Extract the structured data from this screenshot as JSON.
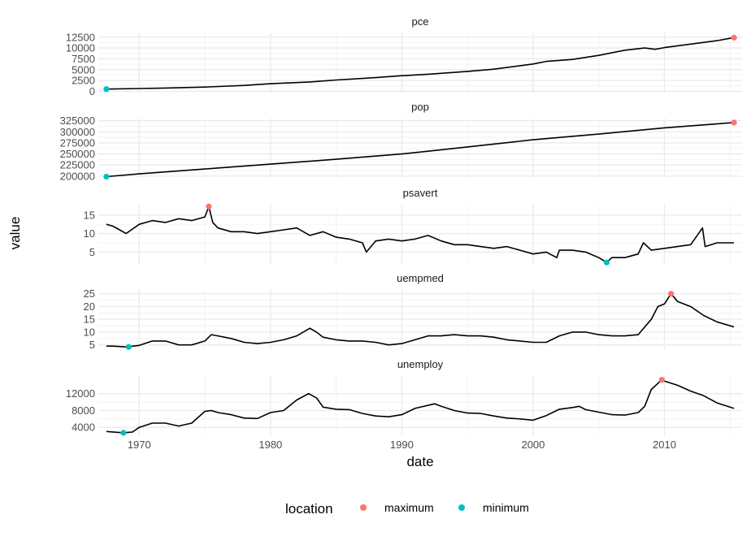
{
  "chart_data": {
    "type": "line",
    "xlabel": "date",
    "ylabel": "value",
    "x_ticks": [
      "1970",
      "1980",
      "1990",
      "2000",
      "2010"
    ],
    "x_tick_values": [
      1970,
      1980,
      1990,
      2000,
      2010
    ],
    "x_range": [
      1967.5,
      2015.3
    ],
    "legend": {
      "title": "location",
      "position": "bottom",
      "entries": [
        {
          "label": "maximum",
          "color": "#F8766D"
        },
        {
          "label": "minimum",
          "color": "#00BFC4"
        }
      ]
    },
    "line_color": "#000000",
    "grid": true,
    "panels": [
      {
        "name": "pce",
        "ylim": [
          -300,
          13400
        ],
        "y_ticks": [
          0,
          2500,
          5000,
          7500,
          10000,
          12500
        ],
        "y_tick_labels": [
          "0",
          "2500",
          "5000",
          "7500",
          "10000",
          "12500"
        ],
        "x": [
          1967.5,
          1970,
          1972,
          1975,
          1978,
          1980,
          1983,
          1985,
          1988,
          1990,
          1992,
          1995,
          1997,
          2000,
          2001,
          2003,
          2005,
          2007,
          2008.5,
          2009.3,
          2010,
          2012,
          2014,
          2015.3
        ],
        "values": [
          507,
          640,
          760,
          980,
          1350,
          1750,
          2150,
          2600,
          3150,
          3600,
          3950,
          4600,
          5100,
          6300,
          6900,
          7350,
          8300,
          9500,
          10000,
          9700,
          10100,
          10900,
          11700,
          12400
        ],
        "maximum": {
          "x": 2015.3,
          "value": 12400
        },
        "minimum": {
          "x": 1967.5,
          "value": 507
        }
      },
      {
        "name": "pop",
        "ylim": [
          196000,
          330000
        ],
        "y_ticks": [
          200000,
          225000,
          250000,
          275000,
          300000,
          325000
        ],
        "y_tick_labels": [
          "200000",
          "225000",
          "250000",
          "275000",
          "300000",
          "325000"
        ],
        "x": [
          1967.5,
          1970,
          1975,
          1980,
          1985,
          1990,
          1995,
          2000,
          2005,
          2010,
          2015.3
        ],
        "values": [
          198700,
          205000,
          216000,
          227000,
          238000,
          250000,
          266000,
          282000,
          295000,
          309000,
          321000
        ],
        "maximum": {
          "x": 2015.3,
          "value": 321000
        },
        "minimum": {
          "x": 1967.5,
          "value": 198700
        }
      },
      {
        "name": "psavert",
        "ylim": [
          1.8,
          17.8
        ],
        "y_ticks": [
          5,
          10,
          15
        ],
        "y_tick_labels": [
          "5",
          "10",
          "15"
        ],
        "x": [
          1967.5,
          1968,
          1968.5,
          1969,
          1970,
          1971,
          1972,
          1973,
          1974,
          1975,
          1975.3,
          1975.6,
          1976,
          1977,
          1978,
          1979,
          1980,
          1981,
          1982,
          1983,
          1984,
          1985,
          1986,
          1987,
          1987.3,
          1988,
          1989,
          1990,
          1991,
          1992,
          1993,
          1994,
          1995,
          1996,
          1997,
          1998,
          1999,
          2000,
          2001,
          2001.8,
          2002,
          2003,
          2004,
          2005,
          2005.6,
          2006,
          2007,
          2008,
          2008.4,
          2009,
          2010,
          2011,
          2012,
          2012.9,
          2013.1,
          2014,
          2015.3
        ],
        "values": [
          12.5,
          12.0,
          11.0,
          10.0,
          12.5,
          13.5,
          13.0,
          14.0,
          13.5,
          14.5,
          17.3,
          13.0,
          11.5,
          10.5,
          10.5,
          10.0,
          10.5,
          11.0,
          11.5,
          9.5,
          10.5,
          9.0,
          8.5,
          7.5,
          5.0,
          8.0,
          8.5,
          8.0,
          8.5,
          9.5,
          8.0,
          7.0,
          7.0,
          6.5,
          6.0,
          6.5,
          5.5,
          4.5,
          5.0,
          3.5,
          5.5,
          5.5,
          5.0,
          3.5,
          2.2,
          3.5,
          3.5,
          4.5,
          7.5,
          5.5,
          6.0,
          6.5,
          7.0,
          11.5,
          6.5,
          7.5,
          7.5
        ],
        "maximum": {
          "x": 1975.3,
          "value": 17.3
        },
        "minimum": {
          "x": 2005.6,
          "value": 2.2
        }
      },
      {
        "name": "uempmed",
        "ylim": [
          3.3,
          26.5
        ],
        "y_ticks": [
          5,
          10,
          15,
          20,
          25
        ],
        "y_tick_labels": [
          "5",
          "10",
          "15",
          "20",
          "25"
        ],
        "x": [
          1967.5,
          1968,
          1969,
          1970,
          1971,
          1972,
          1973,
          1974,
          1975,
          1975.5,
          1976,
          1977,
          1978,
          1979,
          1980,
          1981,
          1982,
          1983,
          1983.5,
          1984,
          1985,
          1986,
          1987,
          1988,
          1989,
          1990,
          1991,
          1992,
          1993,
          1994,
          1995,
          1996,
          1997,
          1998,
          1999,
          2000,
          2001,
          2002,
          2003,
          2004,
          2005,
          2006,
          2007,
          2008,
          2009,
          2009.5,
          2010,
          2010.5,
          2011,
          2012,
          2013,
          2014,
          2015.3
        ],
        "values": [
          4.5,
          4.5,
          4.2,
          4.8,
          6.5,
          6.5,
          5.0,
          5.0,
          6.5,
          9.0,
          8.5,
          7.5,
          6.0,
          5.5,
          6.0,
          7.0,
          8.5,
          11.5,
          10.0,
          8.0,
          7.0,
          6.5,
          6.5,
          6.0,
          5.0,
          5.5,
          7.0,
          8.5,
          8.5,
          9.0,
          8.5,
          8.5,
          8.0,
          7.0,
          6.5,
          6.0,
          6.0,
          8.5,
          10.0,
          10.0,
          9.0,
          8.5,
          8.5,
          9.0,
          15.0,
          20.0,
          21.0,
          25.0,
          22.0,
          20.0,
          16.5,
          14.0,
          12.0
        ],
        "maximum": {
          "x": 2010.5,
          "value": 25.0
        },
        "minimum": {
          "x": 1969.2,
          "value": 4.2
        }
      },
      {
        "name": "unemploy",
        "ylim": [
          2100,
          16200
        ],
        "y_ticks": [
          4000,
          8000,
          12000
        ],
        "y_tick_labels": [
          "4000",
          "8000",
          "12000"
        ],
        "x": [
          1967.5,
          1968,
          1968.8,
          1969.5,
          1970,
          1971,
          1972,
          1973,
          1974,
          1975,
          1975.5,
          1976,
          1977,
          1978,
          1979,
          1980,
          1981,
          1982,
          1982.9,
          1983.5,
          1984,
          1985,
          1986,
          1987,
          1988,
          1989,
          1990,
          1991,
          1992.5,
          1993,
          1994,
          1995,
          1996,
          1997,
          1998,
          1999,
          2000,
          2001,
          2002,
          2003,
          2003.5,
          2004,
          2005,
          2006,
          2007,
          2008,
          2008.5,
          2009,
          2009.8,
          2010,
          2011,
          2012,
          2013,
          2014,
          2015.3
        ],
        "values": [
          3000,
          2900,
          2700,
          2900,
          4000,
          5000,
          5000,
          4300,
          5000,
          7800,
          8000,
          7500,
          7000,
          6200,
          6100,
          7500,
          8000,
          10500,
          12000,
          11000,
          8800,
          8300,
          8200,
          7300,
          6700,
          6500,
          7000,
          8500,
          9600,
          9000,
          8000,
          7400,
          7300,
          6700,
          6200,
          6000,
          5700,
          6800,
          8300,
          8700,
          9000,
          8200,
          7600,
          7000,
          6900,
          7500,
          9000,
          13000,
          15300,
          15000,
          14000,
          12600,
          11500,
          9800,
          8500
        ],
        "maximum": {
          "x": 2009.8,
          "value": 15300
        },
        "minimum": {
          "x": 1968.8,
          "value": 2700
        }
      }
    ]
  }
}
